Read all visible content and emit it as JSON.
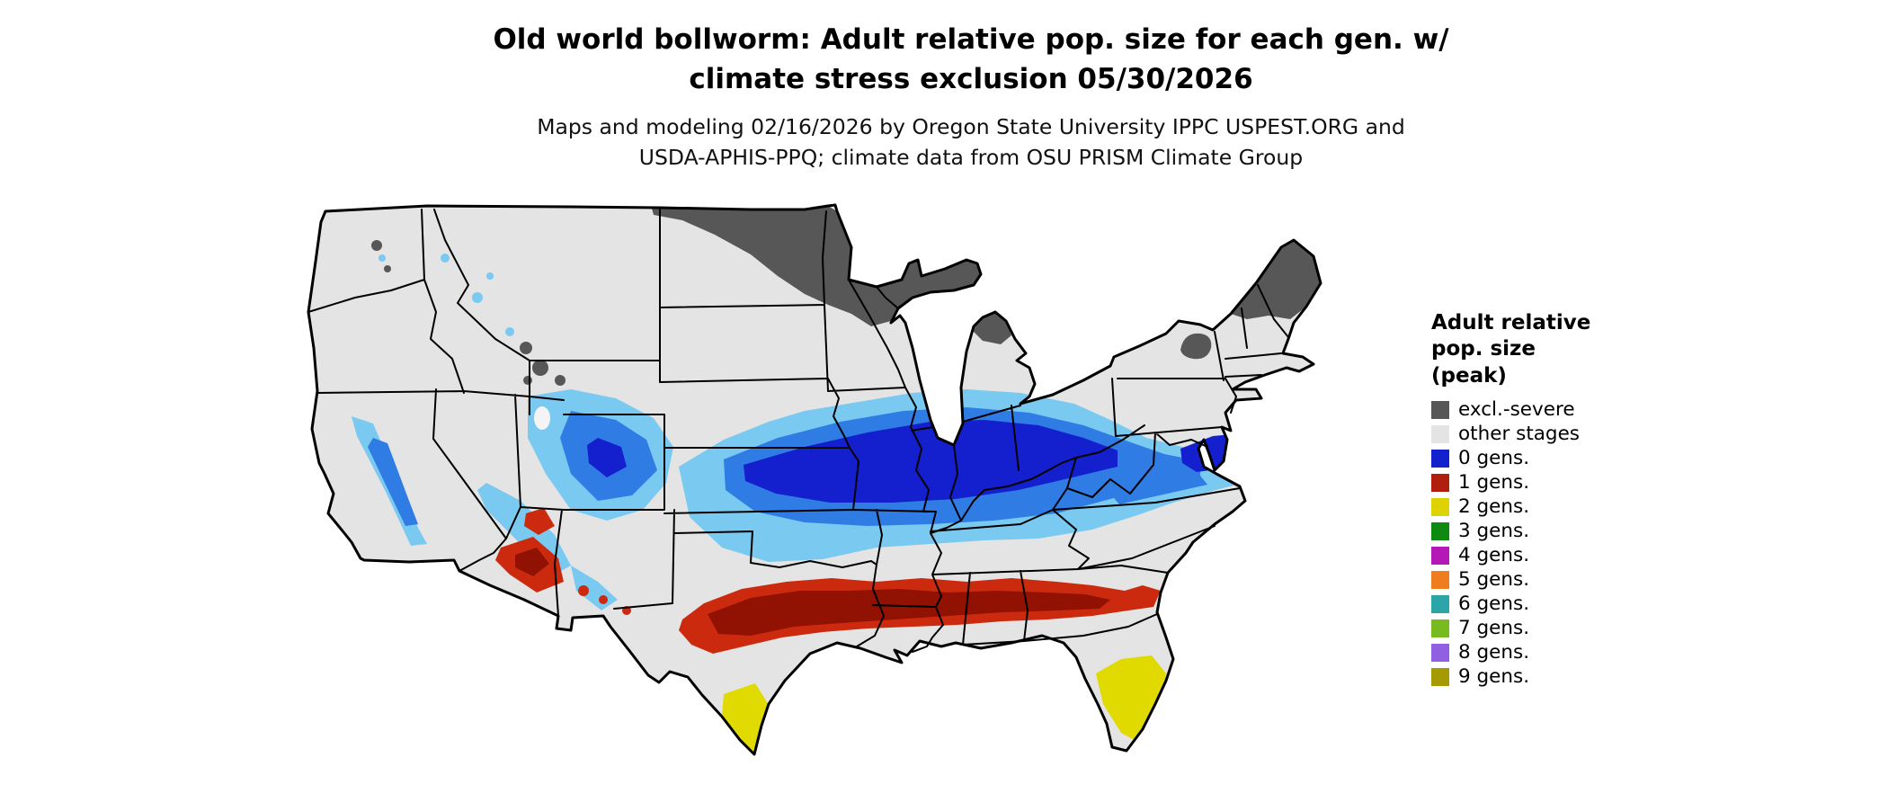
{
  "title": {
    "line1": "Old world bollworm: Adult relative pop. size for each gen. w/",
    "line2": "climate stress exclusion 05/30/2026"
  },
  "subtitle": {
    "line1": "Maps and modeling 02/16/2026 by Oregon State University IPPC USPEST.ORG and",
    "line2": "USDA-APHIS-PPQ; climate data from OSU PRISM Climate Group"
  },
  "legend": {
    "title_lines": [
      "Adult relative",
      "pop. size",
      "(peak)"
    ],
    "items": [
      {
        "label": "excl.-severe",
        "color": "#575757"
      },
      {
        "label": "other stages",
        "color": "#e4e4e4"
      },
      {
        "label": "0 gens.",
        "color": "#1420ce"
      },
      {
        "label": "1 gens.",
        "color": "#b01f0c"
      },
      {
        "label": "2 gens.",
        "color": "#ded200"
      },
      {
        "label": "3 gens.",
        "color": "#0e8a10"
      },
      {
        "label": "4 gens.",
        "color": "#b519b5"
      },
      {
        "label": "5 gens.",
        "color": "#ee7d1e"
      },
      {
        "label": "6 gens.",
        "color": "#2aa5a8"
      },
      {
        "label": "7 gens.",
        "color": "#78bb21"
      },
      {
        "label": "8 gens.",
        "color": "#9160e2"
      },
      {
        "label": "9 gens.",
        "color": "#a59b00"
      }
    ]
  },
  "map": {
    "description": "Contiguous United States map of old world bollworm adult relative population size per generation, 05/30/2026",
    "colors": {
      "background": "#ffffff",
      "base": "#e4e4e4",
      "border": "#000000",
      "excl_severe": "#575757",
      "gens0_light": "#79c9f1",
      "gens0_medium": "#2e7ce4",
      "gens0_core": "#1420ce",
      "gens1_bright": "#cc2a0e",
      "gens1_dark": "#911103",
      "gens2_yellow": "#e1da00",
      "lake": "#f4f4f4"
    }
  }
}
